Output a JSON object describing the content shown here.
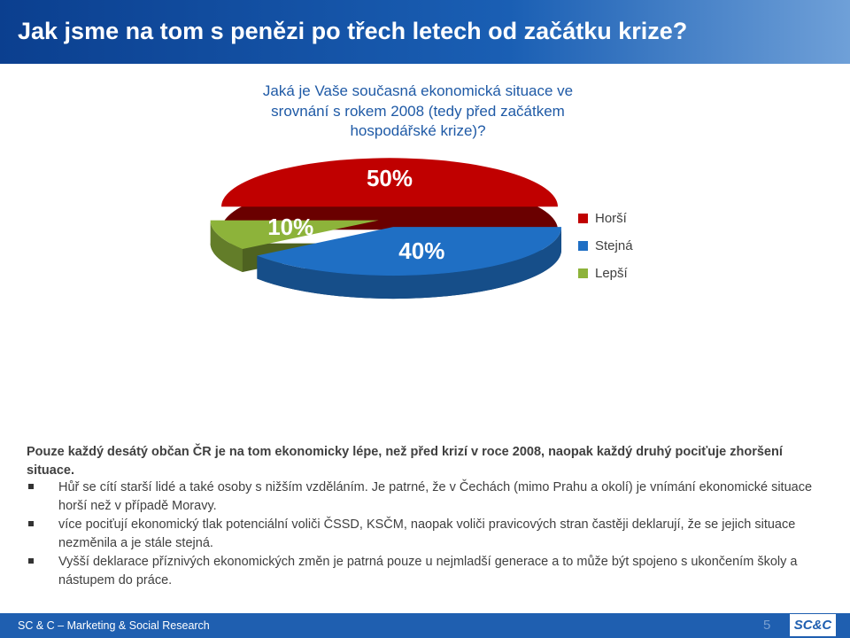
{
  "header": {
    "title": "Jak jsme na tom s penězi po třech letech od začátku krize?"
  },
  "question": [
    "Jaká je Vaše současná ekonomická situace ve",
    "srovnání s rokem 2008 (tedy před začátkem",
    "hospodářské krize)?"
  ],
  "chart_data": {
    "type": "pie",
    "categories": [
      "Horší",
      "Stejná",
      "Lepší"
    ],
    "values": [
      50,
      40,
      10
    ],
    "value_labels": [
      "50%",
      "40%",
      "10%"
    ],
    "colors": [
      "#c00000",
      "#1f6fc4",
      "#8db33a"
    ],
    "legend": "right"
  },
  "summary": "Pouze každý desátý občan ČR je na tom ekonomicky lépe, než před krizí v roce 2008, naopak každý druhý pociťuje zhoršení situace.",
  "bullets": [
    "Hůř se cítí starší lidé a také osoby s nižším vzděláním. Je patrné, že v Čechách (mimo Prahu a okolí) je vnímání ekonomické situace horší než v případě Moravy.",
    "více pociťují ekonomický tlak potenciální voliči ČSSD, KSČM, naopak voliči pravicových stran častěji deklarují, že se jejich situace nezměnila a je stále stejná.",
    "Vyšší deklarace příznivých ekonomických změn je patrná pouze u nejmladší generace a to může být spojeno s ukončením školy a nástupem do práce."
  ],
  "footer": {
    "text": "SC & C – Marketing & Social Research",
    "page": "5",
    "logo": "SC&C"
  }
}
